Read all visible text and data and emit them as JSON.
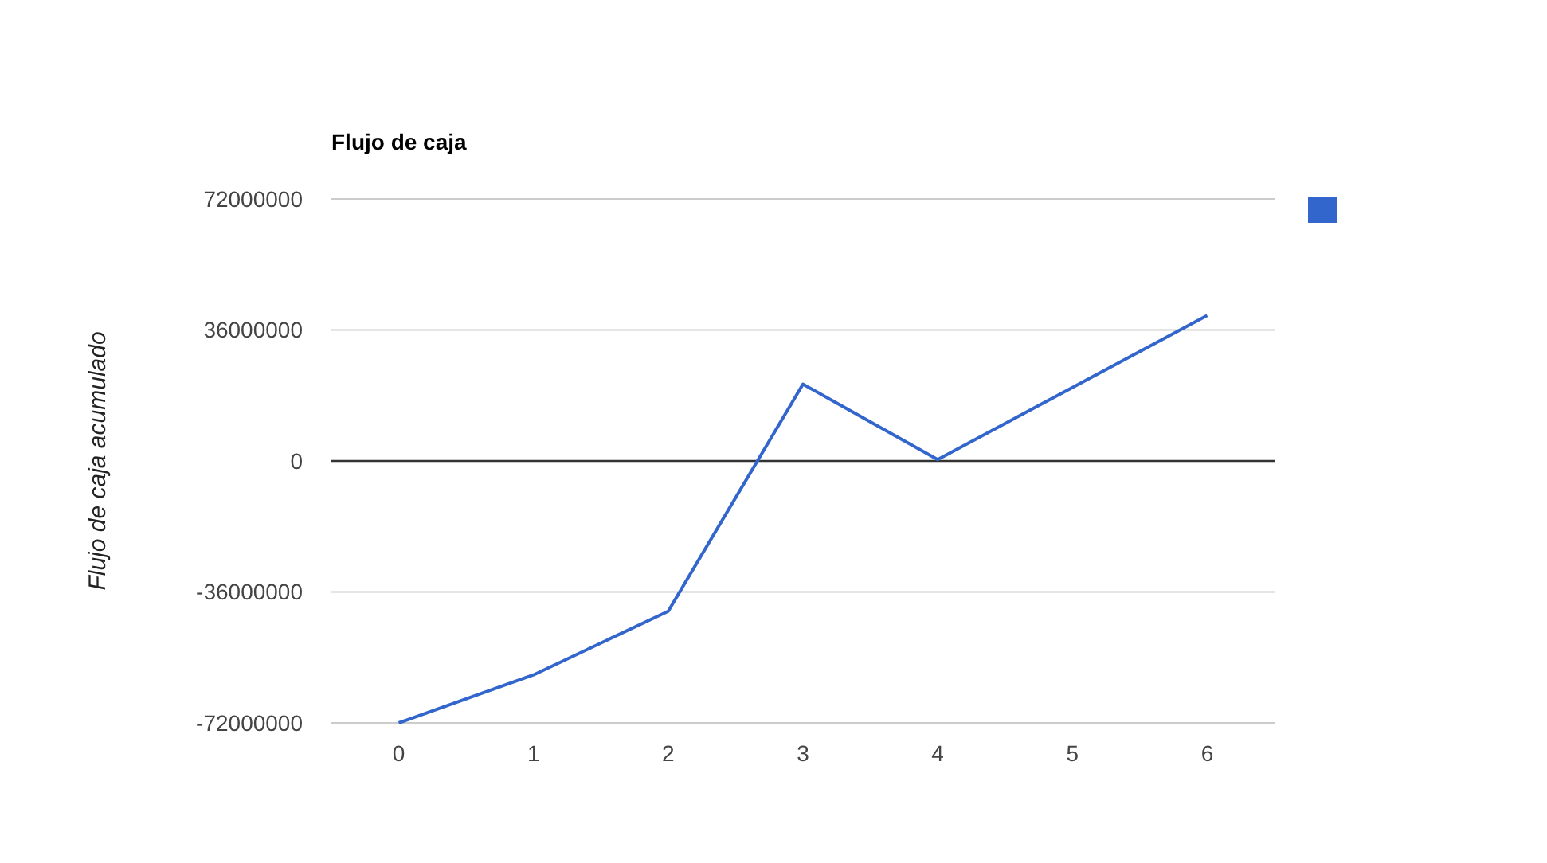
{
  "chart_data": {
    "type": "line",
    "title": "Flujo de caja",
    "ylabel": "Flujo de caja acumulado",
    "categories": [
      "0",
      "1",
      "2",
      "3",
      "4",
      "5",
      "6"
    ],
    "series": [
      {
        "color": "#3366cc",
        "values": [
          -72000000,
          -58800000,
          -41300000,
          21100000,
          400000,
          20200000,
          40000000
        ]
      }
    ],
    "ylim": [
      -72000000,
      72000000
    ],
    "yticks": [
      -72000000,
      -36000000,
      0,
      36000000,
      72000000
    ],
    "grid": "y",
    "ref_lines": [
      {
        "axis": "y",
        "value": 0,
        "color": "#333333"
      }
    ]
  }
}
